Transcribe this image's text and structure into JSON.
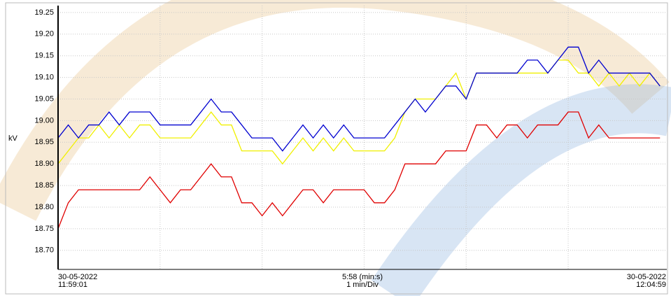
{
  "chart_data": {
    "type": "line",
    "y_label": "kV",
    "x_start_label": [
      "30-05-2022",
      "11:59:01"
    ],
    "x_mid_label": [
      "5:58 (min:s)",
      "1 min/Div"
    ],
    "x_end_label": [
      "30-05-2022",
      "12:04:59"
    ],
    "xlim": [
      0,
      358
    ],
    "x_gridlines": [
      60,
      120,
      180,
      240,
      300
    ],
    "ylim": [
      18.656,
      19.266
    ],
    "yticks": [
      19.25,
      {
        "value": 19.2,
        "label": "19.20"
      },
      19.15,
      {
        "value": 19.1,
        "label": "19.10"
      },
      19.05,
      {
        "value": 19.0,
        "label": "19.00"
      },
      18.95,
      {
        "value": 18.9,
        "label": "18.90"
      },
      18.85,
      {
        "value": 18.8,
        "label": "18.80"
      },
      18.75,
      {
        "value": 18.7,
        "label": "18.70"
      }
    ],
    "grid": true,
    "x": [
      0,
      6,
      12,
      18,
      24,
      30,
      36,
      42,
      48,
      54,
      60,
      66,
      72,
      78,
      84,
      90,
      96,
      102,
      108,
      114,
      120,
      126,
      132,
      138,
      144,
      150,
      156,
      162,
      168,
      174,
      180,
      186,
      192,
      198,
      204,
      210,
      216,
      222,
      228,
      234,
      240,
      246,
      252,
      258,
      264,
      270,
      276,
      282,
      288,
      294,
      300,
      306,
      312,
      318,
      324,
      330,
      336,
      342,
      348,
      354
    ],
    "series": [
      {
        "color": "#e00000",
        "values": [
          18.75,
          18.81,
          18.84,
          18.84,
          18.84,
          18.84,
          18.84,
          18.84,
          18.84,
          18.87,
          18.84,
          18.81,
          18.84,
          18.84,
          18.87,
          18.9,
          18.87,
          18.87,
          18.81,
          18.81,
          18.78,
          18.81,
          18.78,
          18.81,
          18.84,
          18.84,
          18.81,
          18.84,
          18.84,
          18.84,
          18.84,
          18.81,
          18.81,
          18.84,
          18.9,
          18.9,
          18.9,
          18.9,
          18.93,
          18.93,
          18.93,
          18.99,
          18.99,
          18.96,
          18.99,
          18.99,
          18.96,
          18.99,
          18.99,
          18.99,
          19.02,
          19.02,
          18.96,
          18.99,
          18.96,
          18.96,
          18.96,
          18.96,
          18.96,
          18.96
        ]
      },
      {
        "color": "#f0f000",
        "values": [
          18.9,
          18.93,
          18.96,
          18.96,
          18.99,
          18.96,
          18.99,
          18.96,
          18.99,
          18.99,
          18.96,
          18.96,
          18.96,
          18.96,
          18.99,
          19.02,
          18.99,
          18.99,
          18.93,
          18.93,
          18.93,
          18.93,
          18.9,
          18.93,
          18.96,
          18.93,
          18.96,
          18.93,
          18.96,
          18.93,
          18.93,
          18.93,
          18.93,
          18.96,
          19.02,
          19.05,
          19.05,
          19.05,
          19.08,
          19.11,
          19.05,
          19.11,
          19.11,
          19.11,
          19.11,
          19.11,
          19.11,
          19.11,
          19.11,
          19.14,
          19.14,
          19.11,
          19.11,
          19.08,
          19.11,
          19.08,
          19.11,
          19.08,
          19.11,
          19.08
        ]
      },
      {
        "color": "#0000d0",
        "values": [
          18.96,
          18.99,
          18.96,
          18.99,
          18.99,
          19.02,
          18.99,
          19.02,
          19.02,
          19.02,
          18.99,
          18.99,
          18.99,
          18.99,
          19.02,
          19.05,
          19.02,
          19.02,
          18.99,
          18.96,
          18.96,
          18.96,
          18.93,
          18.96,
          18.99,
          18.96,
          18.99,
          18.96,
          18.99,
          18.96,
          18.96,
          18.96,
          18.96,
          18.99,
          19.02,
          19.05,
          19.02,
          19.05,
          19.08,
          19.08,
          19.05,
          19.11,
          19.11,
          19.11,
          19.11,
          19.11,
          19.14,
          19.14,
          19.11,
          19.14,
          19.17,
          19.17,
          19.11,
          19.14,
          19.11,
          19.11,
          19.11,
          19.11,
          19.11,
          19.08
        ]
      }
    ]
  }
}
